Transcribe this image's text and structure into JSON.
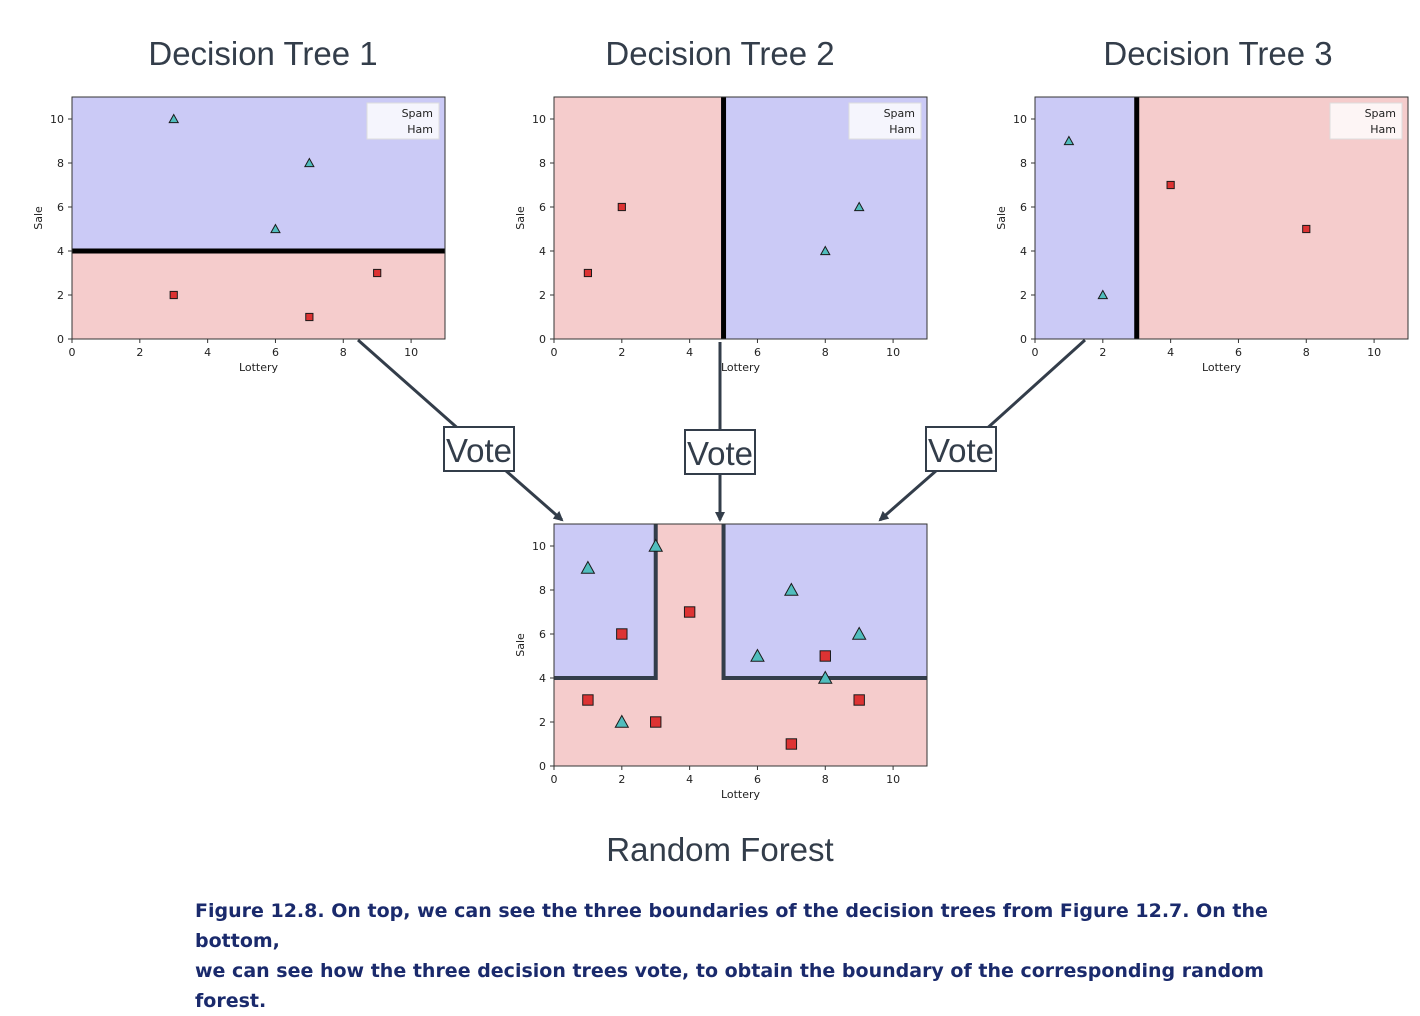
{
  "colors": {
    "spam_region": "#cbcaf6",
    "ham_region": "#f5cccc",
    "triangle_fill": "#50bdbd",
    "square_fill": "#dd3333",
    "arrow": "#333d4a",
    "boundary": "#000000",
    "forest_boundary": "#333d4a",
    "caption": "#1a2a6c"
  },
  "titles": {
    "tree1": "Decision Tree 1",
    "tree2": "Decision Tree 2",
    "tree3": "Decision Tree 3",
    "forest": "Random Forest"
  },
  "vote_label": "Vote",
  "caption_lines": [
    "Figure 12.8. On top, we can see the three boundaries of the decision trees from Figure 12.7. On the bottom,",
    "we can see how the three decision trees vote, to obtain the boundary of the corresponding random forest."
  ],
  "chart_data": [
    {
      "type": "scatter",
      "title": "Decision Tree 1",
      "xlabel": "Lottery",
      "ylabel": "Sale",
      "xlim": [
        0,
        11
      ],
      "ylim": [
        0,
        11
      ],
      "xticks": [
        0,
        2,
        4,
        6,
        8,
        10
      ],
      "yticks": [
        0,
        2,
        4,
        6,
        8,
        10
      ],
      "legend": [
        "Spam",
        "Ham"
      ],
      "legend_position": "top-right",
      "regions": [
        {
          "class": "spam",
          "x": [
            0,
            11
          ],
          "y": [
            4,
            11
          ]
        },
        {
          "class": "ham",
          "x": [
            0,
            11
          ],
          "y": [
            0,
            4
          ]
        }
      ],
      "boundary": [
        [
          [
            0,
            4
          ],
          [
            11,
            4
          ]
        ]
      ],
      "series": [
        {
          "marker": "triangle",
          "points": [
            [
              3,
              10
            ],
            [
              7,
              8
            ],
            [
              6,
              5
            ]
          ]
        },
        {
          "marker": "square",
          "points": [
            [
              3,
              2
            ],
            [
              7,
              1
            ],
            [
              9,
              3
            ]
          ]
        }
      ]
    },
    {
      "type": "scatter",
      "title": "Decision Tree 2",
      "xlabel": "Lottery",
      "ylabel": "Sale",
      "xlim": [
        0,
        11
      ],
      "ylim": [
        0,
        11
      ],
      "xticks": [
        0,
        2,
        4,
        6,
        8,
        10
      ],
      "yticks": [
        0,
        2,
        4,
        6,
        8,
        10
      ],
      "legend": [
        "Spam",
        "Ham"
      ],
      "legend_position": "top-right",
      "regions": [
        {
          "class": "ham",
          "x": [
            0,
            5
          ],
          "y": [
            0,
            11
          ]
        },
        {
          "class": "spam",
          "x": [
            5,
            11
          ],
          "y": [
            0,
            11
          ]
        }
      ],
      "boundary": [
        [
          [
            5,
            0
          ],
          [
            5,
            11
          ]
        ]
      ],
      "series": [
        {
          "marker": "triangle",
          "points": [
            [
              8,
              4
            ],
            [
              9,
              6
            ]
          ]
        },
        {
          "marker": "square",
          "points": [
            [
              1,
              3
            ],
            [
              2,
              6
            ]
          ]
        }
      ]
    },
    {
      "type": "scatter",
      "title": "Decision Tree 3",
      "xlabel": "Lottery",
      "ylabel": "Sale",
      "xlim": [
        0,
        11
      ],
      "ylim": [
        0,
        11
      ],
      "xticks": [
        0,
        2,
        4,
        6,
        8,
        10
      ],
      "yticks": [
        0,
        2,
        4,
        6,
        8,
        10
      ],
      "legend": [
        "Spam",
        "Ham"
      ],
      "legend_position": "top-right",
      "regions": [
        {
          "class": "spam",
          "x": [
            0,
            3
          ],
          "y": [
            0,
            11
          ]
        },
        {
          "class": "ham",
          "x": [
            3,
            11
          ],
          "y": [
            0,
            11
          ]
        }
      ],
      "boundary": [
        [
          [
            3,
            0
          ],
          [
            3,
            11
          ]
        ]
      ],
      "series": [
        {
          "marker": "triangle",
          "points": [
            [
              1,
              9
            ],
            [
              2,
              2
            ]
          ]
        },
        {
          "marker": "square",
          "points": [
            [
              4,
              7
            ],
            [
              8,
              5
            ]
          ]
        }
      ]
    },
    {
      "type": "scatter",
      "title": "Random Forest",
      "xlabel": "Lottery",
      "ylabel": "Sale",
      "xlim": [
        0,
        11
      ],
      "ylim": [
        0,
        11
      ],
      "xticks": [
        0,
        2,
        4,
        6,
        8,
        10
      ],
      "yticks": [
        0,
        2,
        4,
        6,
        8,
        10
      ],
      "regions": [
        {
          "class": "ham",
          "x": [
            0,
            11
          ],
          "y": [
            0,
            11
          ]
        },
        {
          "class": "spam",
          "x": [
            0,
            3
          ],
          "y": [
            4,
            11
          ]
        },
        {
          "class": "spam",
          "x": [
            5,
            11
          ],
          "y": [
            4,
            11
          ]
        }
      ],
      "boundary": [
        [
          [
            0,
            4
          ],
          [
            3,
            4
          ],
          [
            3,
            11
          ]
        ],
        [
          [
            5,
            11
          ],
          [
            5,
            4
          ],
          [
            11,
            4
          ]
        ]
      ],
      "series": [
        {
          "marker": "triangle",
          "points": [
            [
              1,
              9
            ],
            [
              3,
              10
            ],
            [
              7,
              8
            ],
            [
              6,
              5
            ],
            [
              9,
              6
            ],
            [
              8,
              4
            ],
            [
              2,
              2
            ]
          ]
        },
        {
          "marker": "square",
          "points": [
            [
              2,
              6
            ],
            [
              4,
              7
            ],
            [
              8,
              5
            ],
            [
              1,
              3
            ],
            [
              3,
              2
            ],
            [
              9,
              3
            ],
            [
              7,
              1
            ]
          ]
        }
      ]
    }
  ]
}
